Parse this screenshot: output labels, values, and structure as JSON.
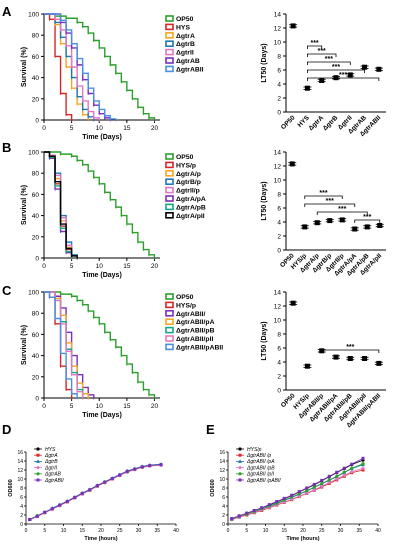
{
  "figure": {
    "panel_letters": [
      "A",
      "B",
      "C",
      "D",
      "E"
    ],
    "colors": {
      "OP50": "#2ca02c",
      "HYS": "#d62728",
      "HYSp": "#d62728",
      "gtrA": "#f5a623",
      "gtrB": "#1f77b4",
      "gtrII": "#e377c2",
      "gtrAB": "#7b2fbe",
      "gtrABII": "#4a90e2",
      "pA": "#f5a623",
      "pB": "#17a589",
      "pII": "#e377c2",
      "pABII": "#4a90e2",
      "black": "#000000"
    }
  },
  "chart_data": [
    {
      "panel": "A-survival",
      "type": "line",
      "xlabel": "Time (Days)",
      "ylabel": "Survival (%)",
      "xlim": [
        0,
        21
      ],
      "ylim": [
        0,
        100
      ],
      "xticks": [
        "0",
        "5",
        "10",
        "15",
        "20"
      ],
      "yticks": [
        "0",
        "20",
        "40",
        "60",
        "80",
        "100"
      ],
      "series": [
        {
          "name": "OP50",
          "color": "#2ca02c",
          "step": [
            0,
            2,
            4,
            6,
            7,
            8,
            9,
            10,
            11,
            12,
            13,
            14,
            15,
            16,
            17,
            18,
            19,
            20
          ],
          "values": [
            100,
            98,
            96,
            92,
            88,
            82,
            75,
            68,
            60,
            52,
            44,
            36,
            28,
            20,
            12,
            6,
            2,
            0
          ]
        },
        {
          "name": "HYS",
          "color": "#d62728",
          "step": [
            0,
            1,
            2,
            3,
            4,
            5
          ],
          "values": [
            100,
            95,
            60,
            25,
            5,
            0
          ]
        },
        {
          "name": "ΔgtrA",
          "color": "#f5a623",
          "step": [
            0,
            2,
            3,
            4,
            5,
            6,
            7,
            8
          ],
          "values": [
            100,
            90,
            72,
            50,
            30,
            15,
            5,
            0
          ]
        },
        {
          "name": "ΔgtrB",
          "color": "#1f77b4",
          "step": [
            0,
            2,
            3,
            4,
            5,
            6,
            7,
            8,
            9
          ],
          "values": [
            100,
            92,
            78,
            60,
            40,
            22,
            10,
            3,
            0
          ]
        },
        {
          "name": "ΔgtrII",
          "color": "#e377c2",
          "step": [
            0,
            2,
            3,
            4,
            5,
            6,
            7,
            8,
            9,
            10
          ],
          "values": [
            100,
            95,
            85,
            70,
            50,
            32,
            18,
            8,
            2,
            0
          ]
        },
        {
          "name": "ΔgtrAB",
          "color": "#7b2fbe",
          "step": [
            0,
            3,
            4,
            5,
            6,
            7,
            8,
            9,
            10,
            11,
            12
          ],
          "values": [
            100,
            92,
            82,
            68,
            52,
            38,
            25,
            14,
            6,
            2,
            0
          ]
        },
        {
          "name": "ΔgtrABII",
          "color": "#4a90e2",
          "step": [
            0,
            3,
            4,
            5,
            6,
            7,
            8,
            9,
            10,
            11,
            12,
            13
          ],
          "values": [
            100,
            94,
            85,
            72,
            58,
            44,
            30,
            18,
            10,
            4,
            1,
            0
          ]
        }
      ]
    },
    {
      "panel": "A-LT50",
      "type": "scatter",
      "ylabel": "LT50 (Days)",
      "ylim": [
        0,
        14
      ],
      "yticks": [
        "0",
        "2",
        "4",
        "6",
        "8",
        "10",
        "12",
        "14"
      ],
      "categories": [
        "OP50",
        "HYS",
        "ΔgtrA",
        "ΔgtrB",
        "ΔgtrII",
        "ΔgtrAB",
        "ΔgtrABII"
      ],
      "values": [
        12.3,
        3.4,
        4.5,
        4.9,
        5.3,
        6.4,
        6.1
      ],
      "significance": [
        "***",
        "***",
        "***",
        "***",
        "***"
      ]
    },
    {
      "panel": "B-survival",
      "type": "line",
      "xlabel": "Time (Days)",
      "ylabel": "Survival (%)",
      "xlim": [
        0,
        21
      ],
      "ylim": [
        0,
        100
      ],
      "xticks": [
        "0",
        "5",
        "10",
        "15",
        "20"
      ],
      "yticks": [
        "0",
        "20",
        "40",
        "60",
        "80",
        "100"
      ],
      "series": [
        {
          "name": "OP50",
          "color": "#2ca02c",
          "step": [
            0,
            3,
            5,
            6,
            7,
            8,
            9,
            10,
            11,
            12,
            13,
            14,
            15,
            16,
            17,
            18,
            19,
            20
          ],
          "values": [
            100,
            98,
            96,
            92,
            88,
            82,
            76,
            70,
            62,
            55,
            48,
            40,
            32,
            24,
            15,
            8,
            3,
            0
          ]
        },
        {
          "name": "HYS/p",
          "color": "#d62728",
          "step": [
            0,
            1,
            2,
            3,
            4,
            5
          ],
          "values": [
            100,
            95,
            70,
            30,
            8,
            0
          ]
        },
        {
          "name": "ΔgtrA/p",
          "color": "#f5a623",
          "step": [
            0,
            1,
            2,
            3,
            4,
            5
          ],
          "values": [
            100,
            96,
            75,
            35,
            10,
            0
          ]
        },
        {
          "name": "ΔgtrB/p",
          "color": "#1f77b4",
          "step": [
            0,
            1,
            2,
            3,
            4,
            5,
            6
          ],
          "values": [
            100,
            97,
            80,
            40,
            15,
            3,
            0
          ]
        },
        {
          "name": "ΔgtrII/p",
          "color": "#e377c2",
          "step": [
            0,
            1,
            2,
            3,
            4,
            5,
            6
          ],
          "values": [
            100,
            97,
            78,
            38,
            12,
            2,
            0
          ]
        },
        {
          "name": "ΔgtrA/pA",
          "color": "#7b2fbe",
          "step": [
            0,
            1,
            2,
            3,
            4,
            5
          ],
          "values": [
            100,
            94,
            65,
            25,
            5,
            0
          ]
        },
        {
          "name": "ΔgtrA/pB",
          "color": "#17a589",
          "step": [
            0,
            1,
            2,
            3,
            4,
            5
          ],
          "values": [
            100,
            95,
            68,
            28,
            6,
            0
          ]
        },
        {
          "name": "ΔgtrA/pII",
          "color": "#000000",
          "step": [
            0,
            1,
            2,
            3,
            4,
            5,
            6
          ],
          "values": [
            100,
            96,
            72,
            32,
            9,
            2,
            0
          ]
        }
      ]
    },
    {
      "panel": "B-LT50",
      "type": "scatter",
      "ylabel": "LT50 (Days)",
      "ylim": [
        0,
        14
      ],
      "yticks": [
        "0",
        "2",
        "4",
        "6",
        "8",
        "10",
        "12",
        "14"
      ],
      "categories": [
        "OP50",
        "HYS/p",
        "ΔgtrA/p",
        "ΔgtrB/p",
        "ΔgtrII/p",
        "ΔgtrA/pA",
        "ΔgtrA/pB",
        "ΔgtrA/pII"
      ],
      "values": [
        12.3,
        3.3,
        3.9,
        4.2,
        4.3,
        3.0,
        3.3,
        3.5
      ],
      "significance": [
        "***",
        "***",
        "***",
        "***"
      ]
    },
    {
      "panel": "C-survival",
      "type": "line",
      "xlabel": "Time (Days)",
      "ylabel": "Survival (%)",
      "xlim": [
        0,
        21
      ],
      "ylim": [
        0,
        100
      ],
      "xticks": [
        "0",
        "5",
        "10",
        "15",
        "20"
      ],
      "yticks": [
        "0",
        "20",
        "40",
        "60",
        "80",
        "100"
      ],
      "series": [
        {
          "name": "OP50",
          "color": "#2ca02c",
          "step": [
            0,
            3,
            5,
            6,
            7,
            8,
            9,
            10,
            11,
            12,
            13,
            14,
            15,
            16,
            17,
            18,
            19,
            20
          ],
          "values": [
            100,
            98,
            96,
            92,
            88,
            82,
            76,
            70,
            62,
            55,
            48,
            40,
            32,
            24,
            15,
            8,
            3,
            0
          ]
        },
        {
          "name": "HYS/p",
          "color": "#d62728",
          "step": [
            0,
            1,
            2,
            3,
            4,
            5
          ],
          "values": [
            100,
            95,
            70,
            30,
            8,
            0
          ]
        },
        {
          "name": "ΔgtrABII/",
          "color": "#7b2fbe",
          "step": [
            0,
            2,
            3,
            4,
            5,
            6,
            7,
            8,
            9
          ],
          "values": [
            100,
            96,
            85,
            62,
            40,
            22,
            10,
            3,
            0
          ]
        },
        {
          "name": "ΔgtrABII/pA",
          "color": "#f5a623",
          "step": [
            0,
            2,
            3,
            4,
            5,
            6,
            7,
            8
          ],
          "values": [
            100,
            94,
            78,
            52,
            30,
            14,
            4,
            0
          ]
        },
        {
          "name": "ΔgtrABII/pB",
          "color": "#17a589",
          "step": [
            0,
            2,
            3,
            4,
            5,
            6,
            7
          ],
          "values": [
            100,
            92,
            72,
            46,
            24,
            8,
            0
          ]
        },
        {
          "name": "ΔgtrABII/pII",
          "color": "#e377c2",
          "step": [
            0,
            2,
            3,
            4,
            5,
            6,
            7
          ],
          "values": [
            100,
            92,
            70,
            44,
            22,
            6,
            0
          ]
        },
        {
          "name": "ΔgtrABII/pABII",
          "color": "#4a90e2",
          "step": [
            0,
            1,
            2,
            3,
            4,
            5,
            6
          ],
          "values": [
            100,
            95,
            75,
            42,
            18,
            4,
            0
          ]
        }
      ]
    },
    {
      "panel": "C-LT50",
      "type": "scatter",
      "ylabel": "LT50 (Days)",
      "ylim": [
        0,
        14
      ],
      "yticks": [
        "0",
        "2",
        "4",
        "6",
        "8",
        "10",
        "12",
        "14"
      ],
      "categories": [
        "OP50",
        "HYS/p",
        "ΔgtrABII/p",
        "ΔgtrABII/pA",
        "ΔgtrABII/pB",
        "ΔgtrABII/pII",
        "ΔgtrABII/pABII"
      ],
      "values": [
        12.4,
        3.4,
        5.6,
        4.7,
        4.5,
        4.5,
        3.8
      ],
      "significance": [
        "***"
      ]
    },
    {
      "panel": "D-growth",
      "type": "line",
      "xlabel": "Time (hours)",
      "ylabel": "OD600",
      "xlim": [
        0,
        40
      ],
      "ylim": [
        0,
        16
      ],
      "xticks": [
        "0",
        "5",
        "10",
        "15",
        "20",
        "25",
        "30",
        "35",
        "40"
      ],
      "yticks": [
        "0",
        "2",
        "4",
        "6",
        "8",
        "10",
        "12",
        "14",
        "16"
      ],
      "x": [
        1,
        3,
        5,
        7,
        9,
        11,
        13,
        15,
        17,
        19,
        21,
        23,
        25,
        27,
        29,
        31,
        33,
        36
      ],
      "series": [
        {
          "name": "HYS",
          "color": "#000000",
          "values": [
            1.0,
            1.8,
            2.6,
            3.4,
            4.2,
            5.0,
            5.9,
            6.8,
            7.6,
            8.5,
            9.3,
            10.1,
            10.9,
            11.7,
            12.2,
            12.7,
            13.0,
            13.2
          ]
        },
        {
          "name": "ΔgtrA",
          "color": "#d62728",
          "values": [
            1.0,
            1.7,
            2.5,
            3.3,
            4.1,
            4.9,
            5.8,
            6.7,
            7.5,
            8.4,
            9.2,
            10.0,
            10.8,
            11.6,
            12.1,
            12.6,
            12.9,
            13.1
          ]
        },
        {
          "name": "ΔgtrB",
          "color": "#1f77b4",
          "values": [
            1.0,
            1.8,
            2.6,
            3.5,
            4.3,
            5.1,
            6.0,
            6.9,
            7.7,
            8.6,
            9.4,
            10.2,
            11.0,
            11.8,
            12.3,
            12.8,
            13.1,
            13.3
          ]
        },
        {
          "name": "ΔgtrII",
          "color": "#e377c2",
          "values": [
            1.0,
            1.7,
            2.5,
            3.3,
            4.1,
            5.0,
            5.8,
            6.7,
            7.6,
            8.4,
            9.2,
            10.0,
            10.8,
            11.5,
            12.1,
            12.6,
            12.9,
            13.1
          ]
        },
        {
          "name": "ΔgtrAB",
          "color": "#2ca02c",
          "values": [
            1.0,
            1.8,
            2.6,
            3.4,
            4.2,
            5.0,
            5.9,
            6.8,
            7.6,
            8.5,
            9.3,
            10.1,
            10.9,
            11.7,
            12.2,
            12.7,
            13.0,
            13.2
          ]
        },
        {
          "name": "ΔgtrABII",
          "color": "#7b2fbe",
          "values": [
            1.0,
            1.7,
            2.6,
            3.4,
            4.2,
            5.0,
            5.9,
            6.8,
            7.6,
            8.5,
            9.3,
            10.1,
            10.9,
            11.7,
            12.2,
            12.7,
            13.0,
            13.2
          ]
        }
      ]
    },
    {
      "panel": "E-growth",
      "type": "line",
      "xlabel": "Time (hours)",
      "ylabel": "OD600",
      "xlim": [
        0,
        40
      ],
      "ylim": [
        0,
        16
      ],
      "xticks": [
        "0",
        "5",
        "10",
        "15",
        "20",
        "25",
        "30",
        "35",
        "40"
      ],
      "yticks": [
        "0",
        "2",
        "4",
        "6",
        "8",
        "10",
        "12",
        "14",
        "16"
      ],
      "x": [
        1,
        3,
        5,
        7,
        9,
        11,
        13,
        15,
        17,
        19,
        21,
        23,
        25,
        27,
        29,
        31,
        33,
        36
      ],
      "series": [
        {
          "name": "HYS/p",
          "color": "#000000",
          "values": [
            1.2,
            1.8,
            2.4,
            3.0,
            3.6,
            4.2,
            4.9,
            5.6,
            6.3,
            7.1,
            7.9,
            8.7,
            9.6,
            10.5,
            11.4,
            12.3,
            13.2,
            14.2
          ]
        },
        {
          "name": "ΔgtrABII /p",
          "color": "#d62728",
          "values": [
            1.0,
            1.5,
            2.0,
            2.5,
            3.0,
            3.6,
            4.2,
            4.8,
            5.4,
            6.1,
            6.8,
            7.5,
            8.2,
            9.0,
            9.8,
            10.6,
            11.4,
            12.0
          ]
        },
        {
          "name": "ΔgtrABII /pA",
          "color": "#1f77b4",
          "values": [
            1.1,
            1.6,
            2.2,
            2.7,
            3.3,
            3.9,
            4.5,
            5.2,
            5.9,
            6.6,
            7.3,
            8.1,
            8.9,
            9.7,
            10.5,
            11.4,
            12.3,
            13.2
          ]
        },
        {
          "name": "ΔgtrABII /pB",
          "color": "#e377c2",
          "values": [
            1.0,
            1.5,
            2.1,
            2.6,
            3.1,
            3.7,
            4.3,
            4.9,
            5.5,
            6.2,
            6.9,
            7.6,
            8.4,
            9.2,
            10.0,
            10.8,
            11.6,
            12.4
          ]
        },
        {
          "name": "ΔgtrABII /pII",
          "color": "#2ca02c",
          "values": [
            1.1,
            1.7,
            2.2,
            2.8,
            3.4,
            4.0,
            4.6,
            5.3,
            6.0,
            6.7,
            7.4,
            8.2,
            9.0,
            9.8,
            10.6,
            11.5,
            12.4,
            13.4
          ]
        },
        {
          "name": "ΔgtrABII /pABII",
          "color": "#7b2fbe",
          "values": [
            1.2,
            1.8,
            2.4,
            3.0,
            3.6,
            4.3,
            5.0,
            5.7,
            6.4,
            7.2,
            8.0,
            8.8,
            9.7,
            10.6,
            11.5,
            12.4,
            13.3,
            14.6
          ]
        }
      ]
    }
  ]
}
